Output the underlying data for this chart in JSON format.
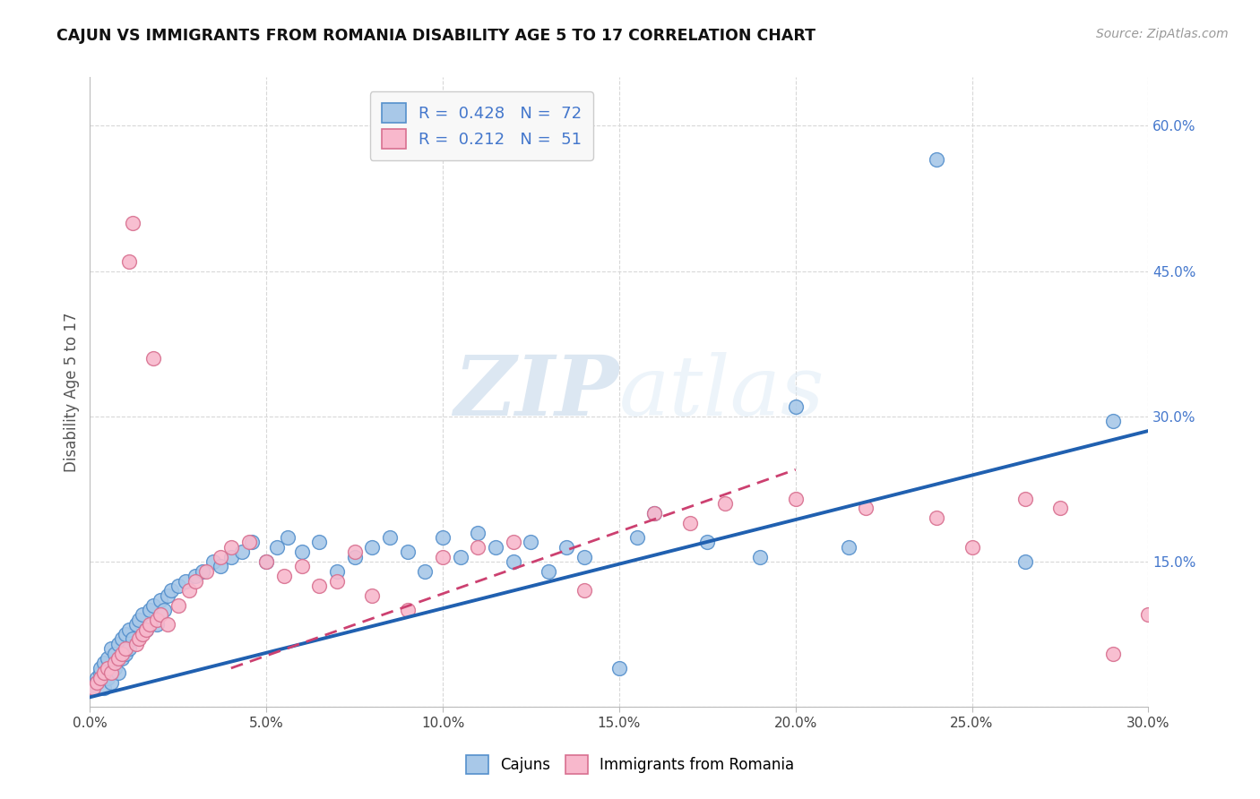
{
  "title": "CAJUN VS IMMIGRANTS FROM ROMANIA DISABILITY AGE 5 TO 17 CORRELATION CHART",
  "source": "Source: ZipAtlas.com",
  "xlabel": "",
  "ylabel": "Disability Age 5 to 17",
  "xlim": [
    0.0,
    0.3
  ],
  "ylim": [
    0.0,
    0.65
  ],
  "xticks": [
    0.0,
    0.05,
    0.1,
    0.15,
    0.2,
    0.25,
    0.3
  ],
  "xticklabels": [
    "0.0%",
    "5.0%",
    "10.0%",
    "15.0%",
    "20.0%",
    "25.0%",
    "30.0%"
  ],
  "yticks_right": [
    0.0,
    0.15,
    0.3,
    0.45,
    0.6
  ],
  "ytick_labels_right": [
    "",
    "15.0%",
    "30.0%",
    "45.0%",
    "60.0%"
  ],
  "series1_label": "Cajuns",
  "series1_color": "#a8c8e8",
  "series1_edge_color": "#5590cc",
  "series1_line_color": "#2060b0",
  "series1_R": 0.428,
  "series1_N": 72,
  "series2_label": "Immigrants from Romania",
  "series2_color": "#f8b8cc",
  "series2_edge_color": "#d87090",
  "series2_line_color": "#cc4070",
  "series2_R": 0.212,
  "series2_N": 51,
  "background_color": "#ffffff",
  "watermark_color": "#d8e8f5",
  "cajuns_x": [
    0.001,
    0.002,
    0.002,
    0.003,
    0.003,
    0.004,
    0.004,
    0.005,
    0.005,
    0.006,
    0.006,
    0.007,
    0.007,
    0.008,
    0.008,
    0.009,
    0.009,
    0.01,
    0.01,
    0.011,
    0.011,
    0.012,
    0.013,
    0.014,
    0.015,
    0.016,
    0.017,
    0.018,
    0.019,
    0.02,
    0.021,
    0.022,
    0.023,
    0.025,
    0.027,
    0.03,
    0.032,
    0.035,
    0.037,
    0.04,
    0.043,
    0.046,
    0.05,
    0.053,
    0.056,
    0.06,
    0.065,
    0.07,
    0.075,
    0.08,
    0.085,
    0.09,
    0.095,
    0.1,
    0.105,
    0.11,
    0.115,
    0.12,
    0.125,
    0.13,
    0.135,
    0.14,
    0.15,
    0.155,
    0.16,
    0.175,
    0.19,
    0.2,
    0.215,
    0.24,
    0.265,
    0.29
  ],
  "cajuns_y": [
    0.02,
    0.03,
    0.025,
    0.035,
    0.04,
    0.02,
    0.045,
    0.03,
    0.05,
    0.025,
    0.06,
    0.04,
    0.055,
    0.035,
    0.065,
    0.05,
    0.07,
    0.055,
    0.075,
    0.06,
    0.08,
    0.07,
    0.085,
    0.09,
    0.095,
    0.08,
    0.1,
    0.105,
    0.085,
    0.11,
    0.1,
    0.115,
    0.12,
    0.125,
    0.13,
    0.135,
    0.14,
    0.15,
    0.145,
    0.155,
    0.16,
    0.17,
    0.15,
    0.165,
    0.175,
    0.16,
    0.17,
    0.14,
    0.155,
    0.165,
    0.175,
    0.16,
    0.14,
    0.175,
    0.155,
    0.18,
    0.165,
    0.15,
    0.17,
    0.14,
    0.165,
    0.155,
    0.04,
    0.175,
    0.2,
    0.17,
    0.155,
    0.31,
    0.165,
    0.565,
    0.15,
    0.295
  ],
  "romania_x": [
    0.001,
    0.002,
    0.003,
    0.004,
    0.005,
    0.006,
    0.007,
    0.008,
    0.009,
    0.01,
    0.011,
    0.012,
    0.013,
    0.014,
    0.015,
    0.016,
    0.017,
    0.018,
    0.019,
    0.02,
    0.022,
    0.025,
    0.028,
    0.03,
    0.033,
    0.037,
    0.04,
    0.045,
    0.05,
    0.055,
    0.06,
    0.065,
    0.07,
    0.075,
    0.08,
    0.09,
    0.1,
    0.11,
    0.12,
    0.14,
    0.16,
    0.17,
    0.18,
    0.2,
    0.22,
    0.24,
    0.25,
    0.265,
    0.275,
    0.29,
    0.3
  ],
  "romania_y": [
    0.02,
    0.025,
    0.03,
    0.035,
    0.04,
    0.035,
    0.045,
    0.05,
    0.055,
    0.06,
    0.46,
    0.5,
    0.065,
    0.07,
    0.075,
    0.08,
    0.085,
    0.36,
    0.09,
    0.095,
    0.085,
    0.105,
    0.12,
    0.13,
    0.14,
    0.155,
    0.165,
    0.17,
    0.15,
    0.135,
    0.145,
    0.125,
    0.13,
    0.16,
    0.115,
    0.1,
    0.155,
    0.165,
    0.17,
    0.12,
    0.2,
    0.19,
    0.21,
    0.215,
    0.205,
    0.195,
    0.165,
    0.215,
    0.205,
    0.055,
    0.095
  ],
  "line1_x0": 0.0,
  "line1_y0": 0.01,
  "line1_x1": 0.3,
  "line1_y1": 0.285,
  "line2_x0": 0.04,
  "line2_y0": 0.04,
  "line2_x1": 0.2,
  "line2_y1": 0.245
}
